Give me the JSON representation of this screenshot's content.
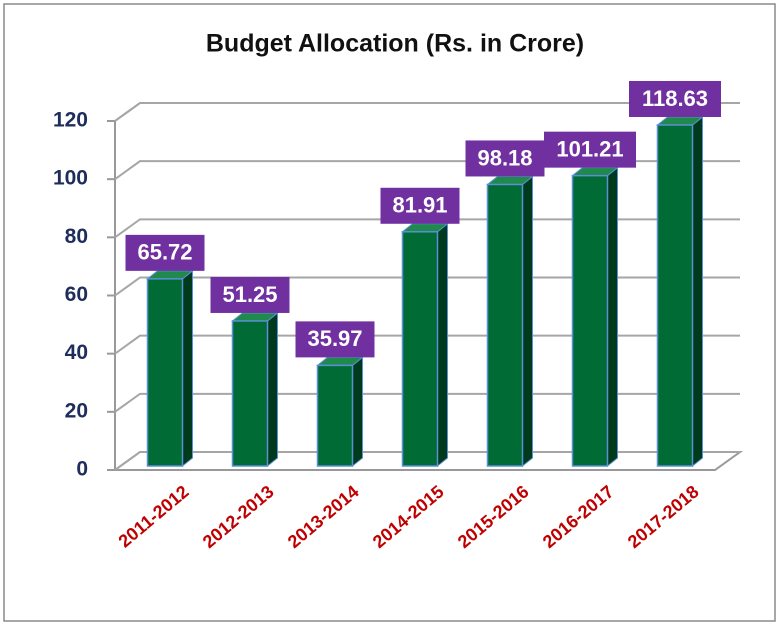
{
  "chart_data": {
    "type": "bar",
    "title": "Budget Allocation  (Rs. in Crore)",
    "categories": [
      "2011-2012",
      "2012-2013",
      "2013-2014",
      "2014-2015",
      "2015-2016",
      "2016-2017",
      "2017-2018"
    ],
    "values": [
      65.72,
      51.25,
      35.97,
      81.91,
      98.18,
      101.21,
      118.63
    ],
    "color": "#006b35",
    "label_color": "#7030a0",
    "category_color": "#c00000",
    "ylim": [
      0,
      120
    ],
    "yticks": [
      0,
      20,
      40,
      60,
      80,
      100,
      120
    ],
    "grid": true
  }
}
